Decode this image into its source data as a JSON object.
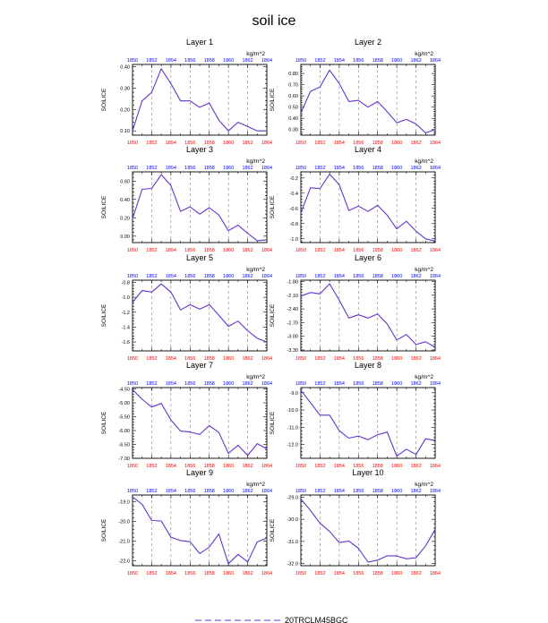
{
  "title": "soil ice",
  "legend_label": "20TRCLM45BGC",
  "colors": {
    "line": "#6633cc",
    "bottom_ticks": "#ff0000",
    "top_ticks": "#0000ff",
    "axis": "#000000",
    "grid": "#808080"
  },
  "chart_data": [
    {
      "type": "line",
      "title": "Layer 1",
      "units": "kg/m^2",
      "ylabel": "SOILICE",
      "x": [
        1850,
        1851,
        1852,
        1853,
        1854,
        1855,
        1856,
        1857,
        1858,
        1859,
        1860,
        1861,
        1862,
        1863,
        1864
      ],
      "xlim": [
        1850,
        1864
      ],
      "xticks": [
        "1850",
        "1852",
        "1854",
        "1856",
        "1858",
        "1860",
        "1862",
        "1864"
      ],
      "ylim": [
        0.08,
        0.41
      ],
      "yticks": [
        "0.10",
        "0.20",
        "0.30",
        "0.40"
      ],
      "ytick_values": [
        0.1,
        0.2,
        0.3,
        0.4
      ],
      "series": [
        {
          "name": "20TRCLM45BGC",
          "values": [
            0.1,
            0.24,
            0.28,
            0.39,
            0.32,
            0.24,
            0.24,
            0.21,
            0.23,
            0.15,
            0.1,
            0.14,
            0.12,
            0.1,
            0.1
          ]
        }
      ]
    },
    {
      "type": "line",
      "title": "Layer 2",
      "units": "kg/m^2",
      "ylabel": "SOILICE",
      "x": [
        1850,
        1851,
        1852,
        1853,
        1854,
        1855,
        1856,
        1857,
        1858,
        1859,
        1860,
        1861,
        1862,
        1863,
        1864
      ],
      "xlim": [
        1850,
        1864
      ],
      "xticks": [
        "1850",
        "1852",
        "1854",
        "1856",
        "1858",
        "1860",
        "1862",
        "1864"
      ],
      "ylim": [
        0.25,
        0.88
      ],
      "yticks": [
        "0.30",
        "0.40",
        "0.50",
        "0.60",
        "0.70",
        "0.80"
      ],
      "ytick_values": [
        0.3,
        0.4,
        0.5,
        0.6,
        0.7,
        0.8
      ],
      "series": [
        {
          "name": "20TRCLM45BGC",
          "values": [
            0.45,
            0.64,
            0.68,
            0.83,
            0.71,
            0.55,
            0.56,
            0.5,
            0.55,
            0.46,
            0.36,
            0.39,
            0.35,
            0.27,
            0.3
          ]
        }
      ]
    },
    {
      "type": "line",
      "title": "Layer 3",
      "units": "kg/m^2",
      "ylabel": "SOILICE",
      "x": [
        1850,
        1851,
        1852,
        1853,
        1854,
        1855,
        1856,
        1857,
        1858,
        1859,
        1860,
        1861,
        1862,
        1863,
        1864
      ],
      "xlim": [
        1850,
        1864
      ],
      "xticks": [
        "1850",
        "1852",
        "1854",
        "1856",
        "1858",
        "1860",
        "1862",
        "1864"
      ],
      "ylim": [
        -0.07,
        0.7
      ],
      "yticks": [
        "0.00",
        "0.20",
        "0.40",
        "0.60"
      ],
      "ytick_values": [
        0.0,
        0.2,
        0.4,
        0.6
      ],
      "series": [
        {
          "name": "20TRCLM45BGC",
          "values": [
            0.19,
            0.51,
            0.52,
            0.67,
            0.55,
            0.27,
            0.32,
            0.24,
            0.31,
            0.23,
            0.06,
            0.12,
            0.03,
            -0.05,
            -0.04
          ]
        }
      ]
    },
    {
      "type": "line",
      "title": "Layer 4",
      "units": "kg/m^2",
      "ylabel": "SOILICE",
      "x": [
        1850,
        1851,
        1852,
        1853,
        1854,
        1855,
        1856,
        1857,
        1858,
        1859,
        1860,
        1861,
        1862,
        1863,
        1864
      ],
      "xlim": [
        1850,
        1864
      ],
      "xticks": [
        "1850",
        "1852",
        "1854",
        "1856",
        "1858",
        "1860",
        "1862",
        "1864"
      ],
      "ylim": [
        -1.05,
        -0.12
      ],
      "yticks": [
        "-0.2",
        "-0.4",
        "-0.6",
        "-0.8",
        "-1.0"
      ],
      "ytick_values": [
        -0.2,
        -0.4,
        -0.6,
        -0.8,
        -1.0
      ],
      "series": [
        {
          "name": "20TRCLM45BGC",
          "values": [
            -0.66,
            -0.33,
            -0.34,
            -0.15,
            -0.29,
            -0.63,
            -0.57,
            -0.64,
            -0.56,
            -0.69,
            -0.87,
            -0.77,
            -0.9,
            -1.0,
            -1.03
          ]
        }
      ]
    },
    {
      "type": "line",
      "title": "Layer 5",
      "units": "kg/m^2",
      "ylabel": "SOILICE",
      "x": [
        1850,
        1851,
        1852,
        1853,
        1854,
        1855,
        1856,
        1857,
        1858,
        1859,
        1860,
        1861,
        1862,
        1863,
        1864
      ],
      "xlim": [
        1850,
        1864
      ],
      "xticks": [
        "1850",
        "1852",
        "1854",
        "1856",
        "1858",
        "1860",
        "1862",
        "1864"
      ],
      "ylim": [
        -1.72,
        -0.77
      ],
      "yticks": [
        "-0.8",
        "-1.0",
        "-1.2",
        "-1.4",
        "-1.6"
      ],
      "ytick_values": [
        -0.8,
        -1.0,
        -1.2,
        -1.4,
        -1.6
      ],
      "series": [
        {
          "name": "20TRCLM45BGC",
          "values": [
            -1.07,
            -0.91,
            -0.93,
            -0.82,
            -0.93,
            -1.17,
            -1.1,
            -1.16,
            -1.1,
            -1.24,
            -1.39,
            -1.32,
            -1.45,
            -1.55,
            -1.6
          ]
        }
      ]
    },
    {
      "type": "line",
      "title": "Layer 6",
      "units": "kg/m^2",
      "ylabel": "SOILICE",
      "x": [
        1850,
        1851,
        1852,
        1853,
        1854,
        1855,
        1856,
        1857,
        1858,
        1859,
        1860,
        1861,
        1862,
        1863,
        1864
      ],
      "xlim": [
        1850,
        1864
      ],
      "xticks": [
        "1850",
        "1852",
        "1854",
        "1856",
        "1858",
        "1860",
        "1862",
        "1864"
      ],
      "ylim": [
        -3.32,
        -1.77
      ],
      "yticks": [
        "-1.80",
        "-2.10",
        "-2.40",
        "-2.70",
        "-3.00",
        "-3.30"
      ],
      "ytick_values": [
        -1.8,
        -2.1,
        -2.4,
        -2.7,
        -3.0,
        -3.3
      ],
      "series": [
        {
          "name": "20TRCLM45BGC",
          "values": [
            -2.12,
            -2.04,
            -2.07,
            -1.85,
            -2.21,
            -2.6,
            -2.53,
            -2.6,
            -2.51,
            -2.73,
            -3.08,
            -2.96,
            -3.18,
            -3.12,
            -3.24
          ]
        }
      ]
    },
    {
      "type": "line",
      "title": "Layer 7",
      "units": "kg/m^2",
      "ylabel": "SOILICE",
      "x": [
        1850,
        1851,
        1852,
        1853,
        1854,
        1855,
        1856,
        1857,
        1858,
        1859,
        1860,
        1861,
        1862,
        1863,
        1864
      ],
      "xlim": [
        1850,
        1864
      ],
      "xticks": [
        "1850",
        "1852",
        "1854",
        "1856",
        "1858",
        "1860",
        "1862",
        "1864"
      ],
      "ylim": [
        -7.0,
        -4.45
      ],
      "yticks": [
        "-4.50",
        "-5.00",
        "-5.50",
        "-6.00",
        "-6.50",
        "-7.00"
      ],
      "ytick_values": [
        -4.5,
        -5.0,
        -5.5,
        -6.0,
        -6.5,
        -7.0
      ],
      "series": [
        {
          "name": "20TRCLM45BGC",
          "values": [
            -4.52,
            -4.87,
            -5.15,
            -5.02,
            -5.62,
            -6.02,
            -6.05,
            -6.14,
            -5.82,
            -6.07,
            -6.82,
            -6.53,
            -6.9,
            -6.47,
            -6.66
          ]
        }
      ]
    },
    {
      "type": "line",
      "title": "Layer 8",
      "units": "kg/m^2",
      "ylabel": "SOILICE",
      "x": [
        1850,
        1851,
        1852,
        1853,
        1854,
        1855,
        1856,
        1857,
        1858,
        1859,
        1860,
        1861,
        1862,
        1863,
        1864
      ],
      "xlim": [
        1850,
        1864
      ],
      "xticks": [
        "1850",
        "1852",
        "1854",
        "1856",
        "1858",
        "1860",
        "1862",
        "1864"
      ],
      "ylim": [
        -12.8,
        -8.7
      ],
      "yticks": [
        "-9.0",
        "-10.0",
        "-11.0",
        "-12.0"
      ],
      "ytick_values": [
        -9.0,
        -10.0,
        -11.0,
        -12.0
      ],
      "series": [
        {
          "name": "20TRCLM45BGC",
          "values": [
            -8.85,
            -9.57,
            -10.3,
            -10.3,
            -11.2,
            -11.63,
            -11.51,
            -11.72,
            -11.43,
            -11.28,
            -12.67,
            -12.27,
            -12.58,
            -11.67,
            -11.77
          ]
        }
      ]
    },
    {
      "type": "line",
      "title": "Layer 9",
      "units": "kg/m^2",
      "ylabel": "SOILICE",
      "x": [
        1850,
        1851,
        1852,
        1853,
        1854,
        1855,
        1856,
        1857,
        1858,
        1859,
        1860,
        1861,
        1862,
        1863,
        1864
      ],
      "xlim": [
        1850,
        1864
      ],
      "xticks": [
        "1850",
        "1852",
        "1854",
        "1856",
        "1858",
        "1860",
        "1862",
        "1864"
      ],
      "ylim": [
        -22.25,
        -18.65
      ],
      "yticks": [
        "-19.0",
        "-20.0",
        "-21.0",
        "-22.0"
      ],
      "ytick_values": [
        -19.0,
        -20.0,
        -21.0,
        -22.0
      ],
      "series": [
        {
          "name": "20TRCLM45BGC",
          "values": [
            -18.75,
            -19.12,
            -19.95,
            -19.97,
            -20.8,
            -20.97,
            -21.03,
            -21.63,
            -21.3,
            -20.63,
            -22.15,
            -21.67,
            -22.06,
            -21.04,
            -20.84
          ]
        }
      ]
    },
    {
      "type": "line",
      "title": "Layer 10",
      "units": "kg/m^2",
      "ylabel": "SOILICE",
      "x": [
        1850,
        1851,
        1852,
        1853,
        1854,
        1855,
        1856,
        1857,
        1858,
        1859,
        1860,
        1861,
        1862,
        1863,
        1864
      ],
      "xlim": [
        1850,
        1864
      ],
      "xticks": [
        "1850",
        "1852",
        "1854",
        "1856",
        "1858",
        "1860",
        "1862",
        "1864"
      ],
      "ylim": [
        -32.1,
        -28.9
      ],
      "yticks": [
        "-29.0",
        "-30.0",
        "-31.0",
        "-32.0"
      ],
      "ytick_values": [
        -29.0,
        -30.0,
        -31.0,
        -32.0
      ],
      "series": [
        {
          "name": "20TRCLM45BGC",
          "values": [
            -29.08,
            -29.6,
            -30.18,
            -30.55,
            -31.05,
            -30.98,
            -31.31,
            -31.94,
            -31.85,
            -31.65,
            -31.66,
            -31.79,
            -31.74,
            -31.2,
            -30.45
          ]
        }
      ]
    }
  ]
}
